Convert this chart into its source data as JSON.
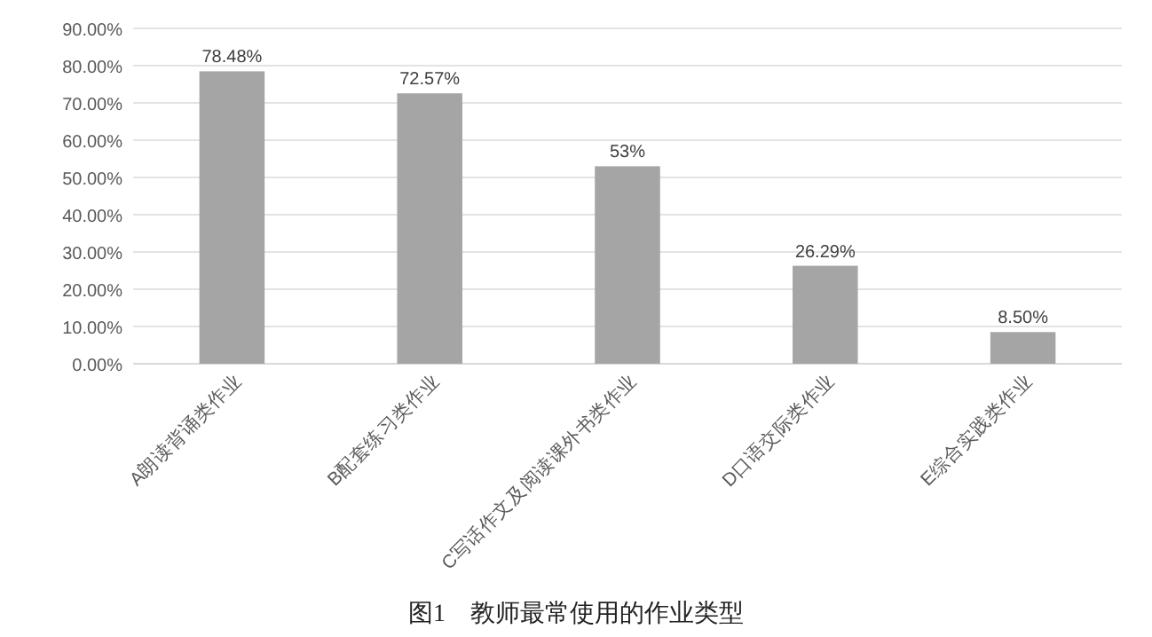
{
  "chart_data": {
    "type": "bar",
    "title": "图1　教师最常使用的作业类型",
    "categories": [
      "A朗读背诵类作业",
      "B配套练习类作业",
      "C写话作文及阅读课外书类作业",
      "D口语交际类作业",
      "E综合实践类作业"
    ],
    "values": [
      78.48,
      72.57,
      53,
      26.29,
      8.5
    ],
    "value_labels": [
      "78.48%",
      "72.57%",
      "53%",
      "26.29%",
      "8.50%"
    ],
    "color": "#a5a5a5",
    "ylim": [
      0,
      90
    ],
    "yticks": [
      {
        "value": 0,
        "label": "0.00%"
      },
      {
        "value": 10,
        "label": "10.00%"
      },
      {
        "value": 20,
        "label": "20.00%"
      },
      {
        "value": 30,
        "label": "30.00%"
      },
      {
        "value": 40,
        "label": "40.00%"
      },
      {
        "value": 50,
        "label": "50.00%"
      },
      {
        "value": 60,
        "label": "60.00%"
      },
      {
        "value": 70,
        "label": "70.00%"
      },
      {
        "value": 80,
        "label": "80.00%"
      },
      {
        "value": 90,
        "label": "90.00%"
      }
    ],
    "grid": "y"
  }
}
